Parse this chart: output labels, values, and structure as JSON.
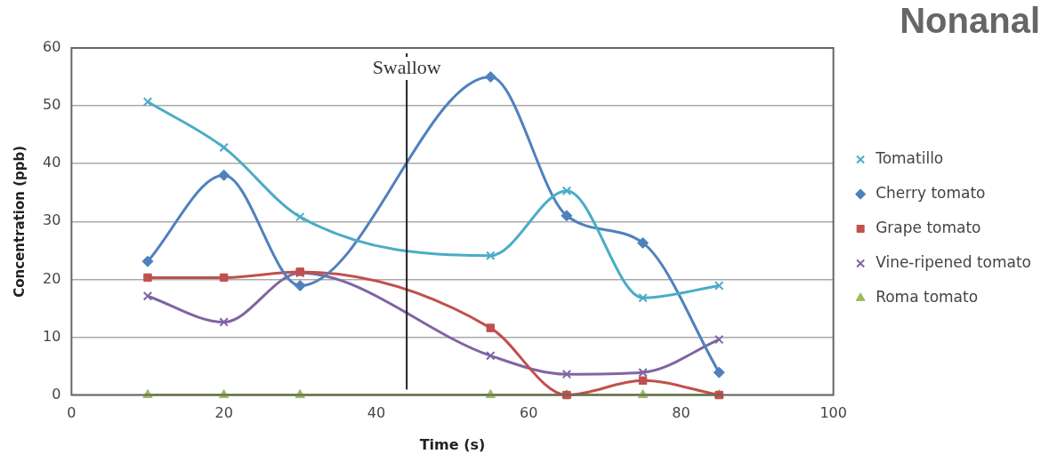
{
  "chart_data": {
    "type": "line",
    "title": "Nonanal",
    "xlabel": "Time (s)",
    "ylabel": "Concentration (ppb)",
    "x": [
      10,
      20,
      30,
      55,
      65,
      75,
      85
    ],
    "series": [
      {
        "name": "Tomatillo",
        "color": "#4bacc6",
        "marker": "cross",
        "values": [
          50.7,
          42.8,
          30.8,
          24.1,
          35.3,
          16.8,
          18.9
        ]
      },
      {
        "name": "Cherry tomato",
        "color": "#4f81bd",
        "marker": "diamond",
        "values": [
          23.1,
          38.0,
          18.9,
          55.0,
          31.0,
          26.3,
          3.9
        ]
      },
      {
        "name": "Grape tomato",
        "color": "#c0504d",
        "marker": "square",
        "values": [
          20.3,
          20.3,
          21.3,
          11.6,
          0,
          2.5,
          0
        ]
      },
      {
        "name": "Vine-ripened tomato",
        "color": "#8064a2",
        "marker": "cross",
        "values": [
          17.1,
          12.6,
          21.1,
          6.8,
          3.6,
          3.9,
          9.6
        ]
      },
      {
        "name": "Roma tomato",
        "color": "#9bbb59",
        "marker": "triangle",
        "values": [
          0,
          0,
          0,
          0,
          0,
          0,
          0
        ]
      }
    ],
    "xlim": [
      0,
      100
    ],
    "xticks": [
      0,
      20,
      40,
      60,
      80,
      100
    ],
    "ylim": [
      0,
      60
    ],
    "yticks": [
      0,
      10,
      20,
      30,
      40,
      50,
      60
    ],
    "grid": "y",
    "legend": "right",
    "ref_lines": [
      {
        "axis": "x",
        "value": 44,
        "label": "Swallow",
        "color": "#222222"
      }
    ]
  }
}
